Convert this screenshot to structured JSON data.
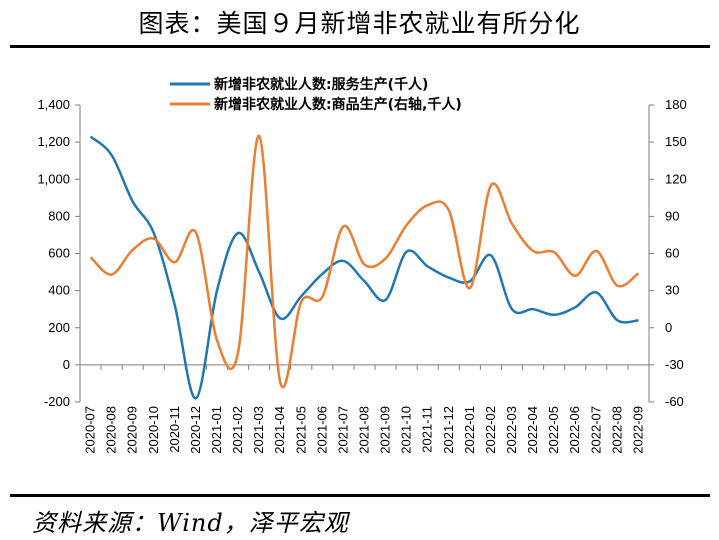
{
  "title": "图表：美国９月新增非农就业有所分化",
  "source": "资料来源：Wind，泽平宏观",
  "chart_data": {
    "type": "line",
    "x": [
      "2020-07",
      "2020-08",
      "2020-09",
      "2020-10",
      "2020-11",
      "2020-12",
      "2021-01",
      "2021-02",
      "2021-03",
      "2021-04",
      "2021-05",
      "2021-06",
      "2021-07",
      "2021-08",
      "2021-09",
      "2021-10",
      "2021-11",
      "2021-12",
      "2022-01",
      "2022-02",
      "2022-03",
      "2022-04",
      "2022-05",
      "2022-06",
      "2022-07",
      "2022-08",
      "2022-09"
    ],
    "series": [
      {
        "name": "新增非农就业人数:服务生产(千人)",
        "axis": "left",
        "color": "#1f77b4",
        "values": [
          1230,
          1130,
          880,
          710,
          320,
          -180,
          400,
          710,
          500,
          250,
          370,
          490,
          560,
          450,
          350,
          610,
          530,
          470,
          450,
          590,
          300,
          300,
          270,
          310,
          390,
          240,
          240
        ]
      },
      {
        "name": "新增非农就业人数:商品生产(右轴,千人)",
        "axis": "right",
        "color": "#ed7d31",
        "values": [
          57,
          43,
          63,
          72,
          53,
          77,
          -10,
          -20,
          155,
          -44,
          21,
          25,
          82,
          51,
          56,
          83,
          99,
          95,
          32,
          115,
          84,
          62,
          61,
          42,
          62,
          34,
          44
        ]
      }
    ],
    "ylim_left": [
      -200,
      1400
    ],
    "yticks_left": [
      "-200",
      "0",
      "200",
      "400",
      "600",
      "800",
      "1,000",
      "1,200",
      "1,400"
    ],
    "ylim_right": [
      -60,
      180
    ],
    "yticks_right": [
      "-60",
      "-30",
      "0",
      "30",
      "60",
      "90",
      "120",
      "150",
      "180"
    ],
    "grid": false,
    "legend": "top-center"
  }
}
